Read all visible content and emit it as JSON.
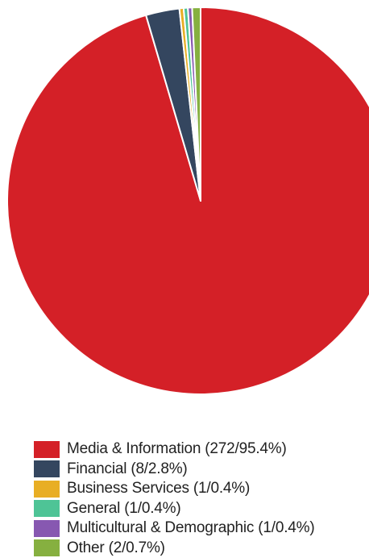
{
  "chart_data": {
    "type": "pie",
    "title": "",
    "legend_position": "bottom",
    "start_angle": "top, clockwise",
    "slices": [
      {
        "label": "Media & Information",
        "count": 272,
        "percent": 95.4,
        "color": "#d42027",
        "legend_label": "Media & Information (272/95.4%)"
      },
      {
        "label": "Financial",
        "count": 8,
        "percent": 2.8,
        "color": "#34465f",
        "legend_label": "Financial (8/2.8%)"
      },
      {
        "label": "Business Services",
        "count": 1,
        "percent": 0.4,
        "color": "#e8ae24",
        "legend_label": "Business Services (1/0.4%)"
      },
      {
        "label": "General",
        "count": 1,
        "percent": 0.4,
        "color": "#4ec496",
        "legend_label": "General (1/0.4%)"
      },
      {
        "label": "Multicultural & Demographic",
        "count": 1,
        "percent": 0.4,
        "color": "#8758b1",
        "legend_label": "Multicultural & Demographic (1/0.4%)"
      },
      {
        "label": "Other",
        "count": 2,
        "percent": 0.7,
        "color": "#86b040",
        "legend_label": "Other (2/0.7%)"
      }
    ]
  }
}
